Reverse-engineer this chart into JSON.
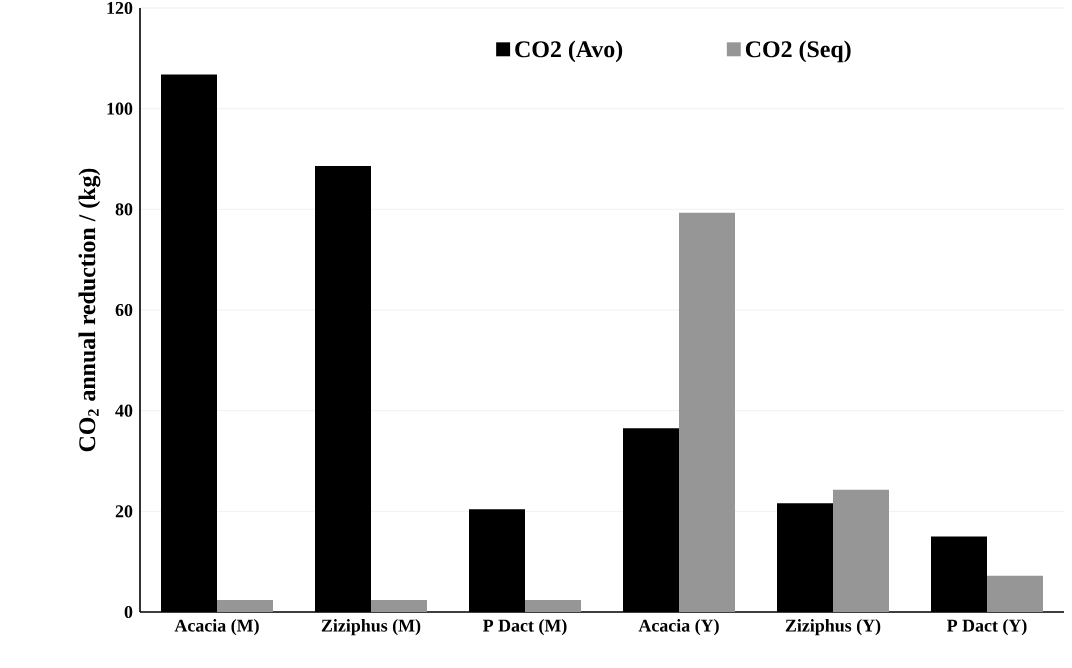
{
  "chart_data": {
    "type": "bar",
    "ylabel": "CO$_{2}$ annual reduction / (kg)",
    "categories": [
      "Acacia (M)",
      "Ziziphus (M)",
      "P Dact (M)",
      "Acacia (Y)",
      "Ziziphus (Y)",
      "P Dact (Y)"
    ],
    "series": [
      {
        "name": "CO2 (Avo)",
        "color": "#000000",
        "values": [
          106.8,
          88.6,
          20.4,
          36.5,
          21.6,
          15.0
        ]
      },
      {
        "name": "CO2 (Seq)",
        "color": "#969696",
        "values": [
          2.4,
          2.4,
          2.4,
          79.3,
          24.3,
          7.2
        ]
      }
    ],
    "ylim": [
      0,
      120
    ],
    "yticks": [
      0,
      20,
      40,
      60,
      80,
      100,
      120
    ],
    "grid": "y",
    "legend": "top"
  }
}
